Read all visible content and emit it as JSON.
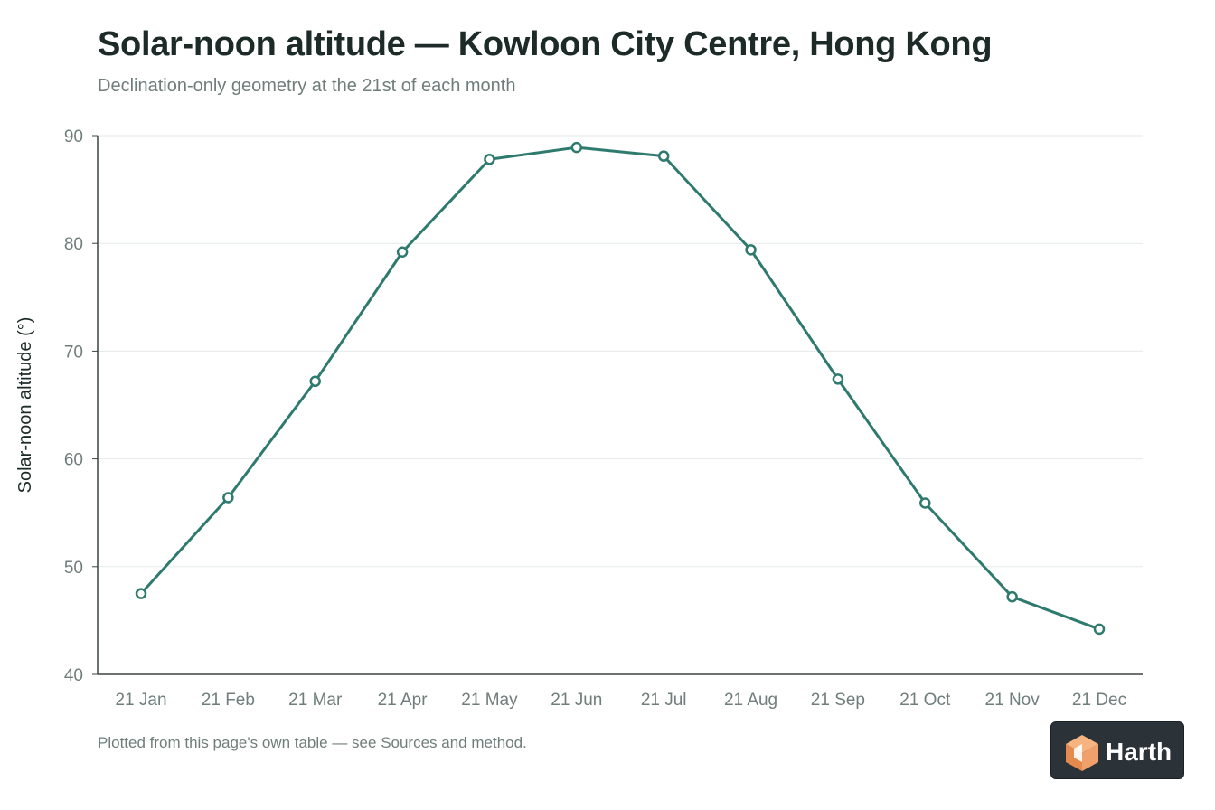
{
  "header": {
    "title": "Solar-noon altitude — Kowloon City Centre, Hong Kong",
    "subtitle": "Declination-only geometry at the 21st of each month"
  },
  "footer": {
    "note": "Plotted from this page's own table — see Sources and method."
  },
  "brand": {
    "name": "Harth",
    "icon": "cube-logo-icon"
  },
  "colors": {
    "series": "#2f7a6e",
    "marker_fill": "#ffffff",
    "grid": "#e6eaea",
    "axis": "#3a4442",
    "tick_label": "#6f7e7b",
    "badge_bg": "#2b3238",
    "logo_light": "#f7b380",
    "logo_dark": "#e48a4c"
  },
  "chart_data": {
    "type": "line",
    "title": "Solar-noon altitude — Kowloon City Centre, Hong Kong",
    "subtitle": "Declination-only geometry at the 21st of each month",
    "xlabel": "",
    "ylabel": "Solar-noon altitude (°)",
    "categories": [
      "21 Jan",
      "21 Feb",
      "21 Mar",
      "21 Apr",
      "21 May",
      "21 Jun",
      "21 Jul",
      "21 Aug",
      "21 Sep",
      "21 Oct",
      "21 Nov",
      "21 Dec"
    ],
    "series": [
      {
        "values": [
          47.5,
          56.4,
          67.2,
          79.2,
          87.8,
          88.9,
          88.1,
          79.4,
          67.4,
          55.9,
          47.2,
          44.2
        ]
      }
    ],
    "ylim": [
      40,
      90
    ],
    "yticks": [
      40,
      50,
      60,
      70,
      80,
      90
    ],
    "grid": true,
    "legend": "none",
    "markers": "hollow-circle"
  }
}
